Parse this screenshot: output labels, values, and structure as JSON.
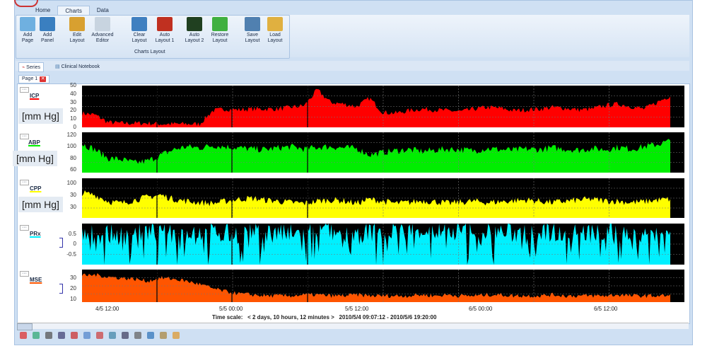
{
  "ribbon": {
    "tabs": [
      "Home",
      "Charts",
      "Data"
    ],
    "active_tab": "Charts",
    "buttons": [
      {
        "l1": "Add",
        "l2": "Page",
        "icon": "add-page-icon",
        "color": "#6fb0e0"
      },
      {
        "l1": "Add",
        "l2": "Panel",
        "icon": "add-panel-icon",
        "color": "#3a7fc0"
      },
      {
        "l1": "Edit",
        "l2": "Layout",
        "icon": "edit-layout-icon",
        "color": "#d8a030"
      },
      {
        "l1": "Advanced",
        "l2": "Editor",
        "icon": "advanced-editor-icon",
        "color": "#c8d4e0"
      },
      {
        "l1": "Clear",
        "l2": "Layout",
        "icon": "clear-layout-icon",
        "color": "#4080c0"
      },
      {
        "l1": "Auto",
        "l2": "Layout 1",
        "icon": "auto-layout-1-icon",
        "color": "#c03020"
      },
      {
        "l1": "Auto",
        "l2": "Layout 2",
        "icon": "auto-layout-2-icon",
        "color": "#204020"
      },
      {
        "l1": "Restore",
        "l2": "Layout",
        "icon": "restore-layout-icon",
        "color": "#40b040"
      },
      {
        "l1": "Save",
        "l2": "Layout",
        "icon": "save-layout-icon",
        "color": "#5080b0"
      },
      {
        "l1": "Load",
        "l2": "Layout",
        "icon": "load-layout-icon",
        "color": "#e0b040"
      }
    ],
    "group_label": "Charts Layout"
  },
  "view_tabs": [
    "Series",
    "Clinical Notebook"
  ],
  "page_tab": "Page 1",
  "chart_data": {
    "type": "area",
    "x_ticks": [
      "4/5 12:00",
      "5/5 00:00",
      "5/5 12:00",
      "6/5 00:00",
      "6/5 12:00"
    ],
    "series": [
      {
        "name": "ICP",
        "unit": "[mm Hg]",
        "color": "#ff0000",
        "ylim": [
          0,
          50
        ],
        "ticks": [
          "50",
          "40",
          "30",
          "20",
          "10",
          "0"
        ],
        "values": [
          17,
          15,
          6,
          5,
          5,
          5,
          4,
          4,
          4,
          4,
          20,
          22,
          21,
          22,
          22,
          22,
          24,
          26,
          45,
          30,
          28,
          25,
          35,
          18,
          17,
          20,
          22,
          21,
          20,
          19,
          22,
          24,
          23,
          20,
          21,
          22,
          24,
          23,
          21,
          22,
          26,
          28,
          25,
          22,
          30,
          38
        ]
      },
      {
        "name": "ABP",
        "unit": "[mm Hg]",
        "color": "#00ee00",
        "ylim": [
          55,
          125
        ],
        "ticks": [
          "120",
          "100",
          "80",
          "60"
        ],
        "values": [
          105,
          95,
          80,
          78,
          72,
          75,
          85,
          95,
          100,
          98,
          102,
          100,
          98,
          96,
          95,
          98,
          100,
          96,
          99,
          100,
          98,
          97,
          86,
          90,
          93,
          95,
          92,
          94,
          96,
          95,
          93,
          97,
          95,
          94,
          96,
          95,
          98,
          96,
          94,
          97,
          95,
          99,
          96,
          100,
          104,
          110
        ]
      },
      {
        "name": "CPP",
        "unit": "[mm Hg]",
        "color": "#ffff00",
        "ylim": [
          15,
          110
        ],
        "ticks": [
          "100",
          "30",
          "30"
        ],
        "values": [
          75,
          70,
          55,
          50,
          58,
          65,
          70,
          60,
          55,
          52,
          50,
          55,
          60,
          62,
          58,
          55,
          52,
          50,
          55,
          58,
          56,
          50,
          60,
          55,
          50,
          52,
          56,
          54,
          50,
          53,
          55,
          52,
          54,
          56,
          58,
          55,
          52,
          55,
          58,
          60,
          56,
          55,
          52,
          54,
          58,
          60
        ]
      },
      {
        "name": "PRx",
        "unit": "",
        "color": "#00f0ff",
        "ylim": [
          -1,
          1
        ],
        "ticks": [
          "0.5",
          "0",
          "-0.5"
        ],
        "values": [
          0.4,
          0.5,
          0.5,
          0.4,
          0.5,
          0.6,
          0.5,
          0.5,
          0.6,
          0.6,
          0.6,
          0.5,
          0.5,
          0.6,
          0.6,
          0.5,
          0.5,
          0.6,
          0.7,
          0.6,
          0.5,
          0.5,
          0.6,
          0.6,
          0.6,
          0.7,
          0.7,
          0.6,
          0.6,
          0.6,
          0.7,
          0.6,
          0.6,
          0.5,
          0.6,
          0.6,
          0.6,
          0.6,
          0.5,
          0.5,
          0.6,
          0.6,
          0.5,
          0.6,
          0.6,
          0.6
        ]
      },
      {
        "name": "MSE",
        "unit": "",
        "color": "#ff5500",
        "ylim": [
          7,
          38
        ],
        "ticks": [
          "30",
          "20",
          "10"
        ],
        "values": [
          32,
          33,
          31,
          30,
          29,
          27,
          30,
          29,
          27,
          24,
          20,
          17,
          15,
          14,
          13,
          13,
          13,
          14,
          14,
          13,
          13,
          14,
          13,
          13,
          13,
          13,
          14,
          13,
          14,
          13,
          13,
          14,
          14,
          13,
          13,
          13,
          14,
          13,
          13,
          13,
          13,
          14,
          13,
          13,
          13,
          13
        ]
      }
    ]
  },
  "time_scale": {
    "label": "Time scale:",
    "span": "< 2 days, 10 hours, 12 minutes >",
    "range": "2010/5/4 09:07:12 - 2010/5/6 19:20:00"
  },
  "toolbar_icons": [
    "close-icon",
    "chart-type-icon",
    "print-icon",
    "export-icon",
    "cursor-icon",
    "list-icon",
    "marker-icon",
    "zoom-icon",
    "select-icon",
    "delete-icon",
    "filter-icon",
    "link-icon",
    "annotate-icon"
  ]
}
